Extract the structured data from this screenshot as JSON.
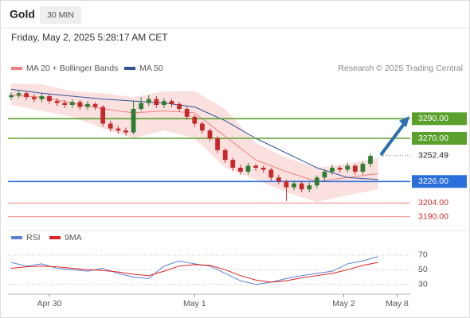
{
  "header": {
    "symbol": "Gold",
    "interval": "30 MIN"
  },
  "chart_data": [
    {
      "type": "candlestick",
      "title": "Friday, May 2, 2025 5:28:17 AM CET",
      "attribution": "Research © 2025 Trading Central",
      "xlim": [
        0,
        52
      ],
      "xticks": [
        {
          "value": 5,
          "label": "Apr 30"
        },
        {
          "value": 24,
          "label": "May 1"
        },
        {
          "value": 43.5,
          "label": "May 2"
        },
        {
          "value": 50.5,
          "label": "May 8"
        }
      ],
      "ylim": [
        3180,
        3330
      ],
      "up_color": "#2e7d32",
      "down_color": "#c62828",
      "candles": {
        "x": [
          0,
          1,
          2,
          3,
          4,
          5,
          6,
          7,
          8,
          9,
          10,
          11,
          12,
          13,
          14,
          15,
          16,
          17,
          18,
          19,
          20,
          21,
          22,
          23,
          24,
          25,
          26,
          27,
          28,
          29,
          30,
          31,
          32,
          33,
          34,
          35,
          36,
          37,
          38,
          39,
          40,
          41,
          42,
          43,
          44,
          45,
          46,
          47
        ],
        "open": [
          3312,
          3314,
          3316,
          3312,
          3310,
          3313,
          3308,
          3306,
          3304,
          3307,
          3302,
          3305,
          3302,
          3285,
          3280,
          3278,
          3276,
          3300,
          3306,
          3310,
          3304,
          3308,
          3305,
          3300,
          3292,
          3285,
          3278,
          3270,
          3258,
          3248,
          3240,
          3236,
          3242,
          3240,
          3238,
          3230,
          3226,
          3220,
          3224,
          3218,
          3222,
          3230,
          3236,
          3240,
          3238,
          3242,
          3236,
          3244
        ],
        "high": [
          3317,
          3319,
          3318,
          3315,
          3316,
          3315,
          3311,
          3309,
          3310,
          3309,
          3308,
          3307,
          3304,
          3288,
          3283,
          3281,
          3308,
          3312,
          3314,
          3313,
          3311,
          3310,
          3307,
          3302,
          3294,
          3287,
          3280,
          3272,
          3260,
          3250,
          3243,
          3245,
          3244,
          3242,
          3240,
          3233,
          3228,
          3227,
          3226,
          3225,
          3232,
          3238,
          3243,
          3242,
          3245,
          3244,
          3246,
          3254
        ],
        "low": [
          3309,
          3311,
          3309,
          3307,
          3307,
          3305,
          3303,
          3301,
          3301,
          3299,
          3299,
          3299,
          3282,
          3277,
          3275,
          3273,
          3274,
          3298,
          3303,
          3301,
          3301,
          3302,
          3297,
          3289,
          3282,
          3275,
          3267,
          3255,
          3245,
          3237,
          3233,
          3233,
          3237,
          3235,
          3227,
          3223,
          3206,
          3217,
          3215,
          3215,
          3219,
          3227,
          3233,
          3235,
          3235,
          3233,
          3233,
          3241
        ],
        "close": [
          3314,
          3316,
          3312,
          3310,
          3313,
          3308,
          3306,
          3304,
          3307,
          3302,
          3305,
          3302,
          3285,
          3280,
          3278,
          3276,
          3300,
          3306,
          3310,
          3304,
          3308,
          3305,
          3300,
          3292,
          3285,
          3278,
          3270,
          3258,
          3248,
          3240,
          3236,
          3242,
          3240,
          3238,
          3230,
          3226,
          3220,
          3224,
          3218,
          3222,
          3230,
          3236,
          3240,
          3238,
          3242,
          3236,
          3244,
          3252
        ]
      },
      "bands": {
        "name": "MA 20 + Bollinger Bands",
        "color": "#f4a6a6",
        "x": [
          0,
          4,
          8,
          12,
          16,
          20,
          24,
          28,
          32,
          36,
          40,
          44,
          48
        ],
        "upper": [
          3326,
          3325,
          3318,
          3316,
          3312,
          3318,
          3318,
          3300,
          3265,
          3250,
          3240,
          3244,
          3250
        ],
        "lower": [
          3304,
          3298,
          3292,
          3280,
          3270,
          3278,
          3270,
          3240,
          3228,
          3215,
          3205,
          3212,
          3218
        ]
      },
      "series": [
        {
          "name": "MA 20 + Bollinger Bands",
          "color": "#f08080",
          "x": [
            0,
            4,
            8,
            12,
            16,
            20,
            24,
            28,
            32,
            36,
            40,
            44,
            48
          ],
          "values": [
            3314,
            3312,
            3306,
            3300,
            3296,
            3298,
            3296,
            3272,
            3248,
            3236,
            3226,
            3230,
            3234
          ]
        },
        {
          "name": "MA 50",
          "color": "#2f5597",
          "x": [
            0,
            4,
            8,
            12,
            16,
            20,
            24,
            28,
            32,
            36,
            40,
            44,
            48
          ],
          "values": [
            3320,
            3316,
            3313,
            3310,
            3308,
            3306,
            3302,
            3288,
            3270,
            3255,
            3240,
            3230,
            3228
          ]
        }
      ],
      "levels": [
        {
          "value": 3290,
          "label": "3290.00",
          "color": "#5aa02c",
          "style": "box"
        },
        {
          "value": 3270,
          "label": "3270.00",
          "color": "#5aa02c",
          "style": "box"
        },
        {
          "value": 3252.49,
          "label": "3252.49",
          "color": "#888888",
          "style": "current"
        },
        {
          "value": 3226,
          "label": "3226.00",
          "color": "#2a6fdb",
          "style": "box"
        },
        {
          "value": 3204,
          "label": "3204.00",
          "color": "#f08080",
          "style": "text"
        },
        {
          "value": 3190,
          "label": "3190.00",
          "color": "#f08080",
          "style": "text"
        }
      ]
    },
    {
      "type": "line",
      "xlim": [
        0,
        52
      ],
      "ylim": [
        20,
        85
      ],
      "yticks": [
        30,
        50,
        70
      ],
      "series": [
        {
          "name": "RSI",
          "color": "#5b7fd6",
          "x": [
            0,
            2,
            4,
            6,
            8,
            10,
            12,
            14,
            16,
            18,
            20,
            22,
            24,
            26,
            28,
            30,
            32,
            34,
            36,
            38,
            40,
            42,
            44,
            46,
            48
          ],
          "values": [
            60,
            55,
            58,
            52,
            50,
            48,
            52,
            45,
            40,
            38,
            55,
            62,
            58,
            55,
            45,
            35,
            30,
            33,
            38,
            42,
            45,
            48,
            58,
            62,
            68
          ]
        },
        {
          "name": "9MA",
          "color": "#e02020",
          "x": [
            0,
            2,
            4,
            6,
            8,
            10,
            12,
            14,
            16,
            18,
            20,
            22,
            24,
            26,
            28,
            30,
            32,
            34,
            36,
            38,
            40,
            42,
            44,
            46,
            48
          ],
          "values": [
            52,
            54,
            55,
            54,
            52,
            50,
            49,
            47,
            44,
            42,
            48,
            55,
            57,
            56,
            50,
            42,
            36,
            33,
            35,
            39,
            42,
            45,
            50,
            56,
            60
          ]
        }
      ]
    }
  ]
}
